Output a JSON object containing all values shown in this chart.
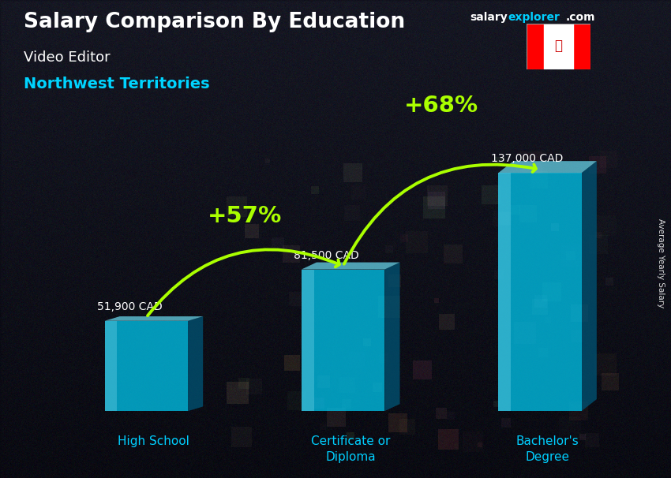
{
  "title_main": "Salary Comparison By Education",
  "title_sub1": "Video Editor",
  "title_sub2": "Northwest Territories",
  "categories": [
    "High School",
    "Certificate or\nDiploma",
    "Bachelor's\nDegree"
  ],
  "values": [
    51900,
    81500,
    137000
  ],
  "value_labels": [
    "51,900 CAD",
    "81,500 CAD",
    "137,000 CAD"
  ],
  "pct_labels": [
    "+57%",
    "+68%"
  ],
  "bar_color_main": "#00c8f0",
  "bar_color_light": "#70e8ff",
  "bar_color_dark": "#0088bb",
  "bar_color_side": "#005577",
  "ylabel_rotated": "Average Yearly Salary",
  "bg_dark": "#0d0d1a",
  "bg_mid": "#1a1a35",
  "title_color": "#ffffff",
  "subtitle_color": "#00d4ff",
  "value_label_color": "#ffffff",
  "pct_color": "#aaff00",
  "arrow_color": "#aaff00",
  "xlabel_color": "#00cfff",
  "bar_alpha": 0.75,
  "ylim_max": 165000,
  "x_positions": [
    1.0,
    2.3,
    3.6
  ],
  "bar_width": 0.55
}
